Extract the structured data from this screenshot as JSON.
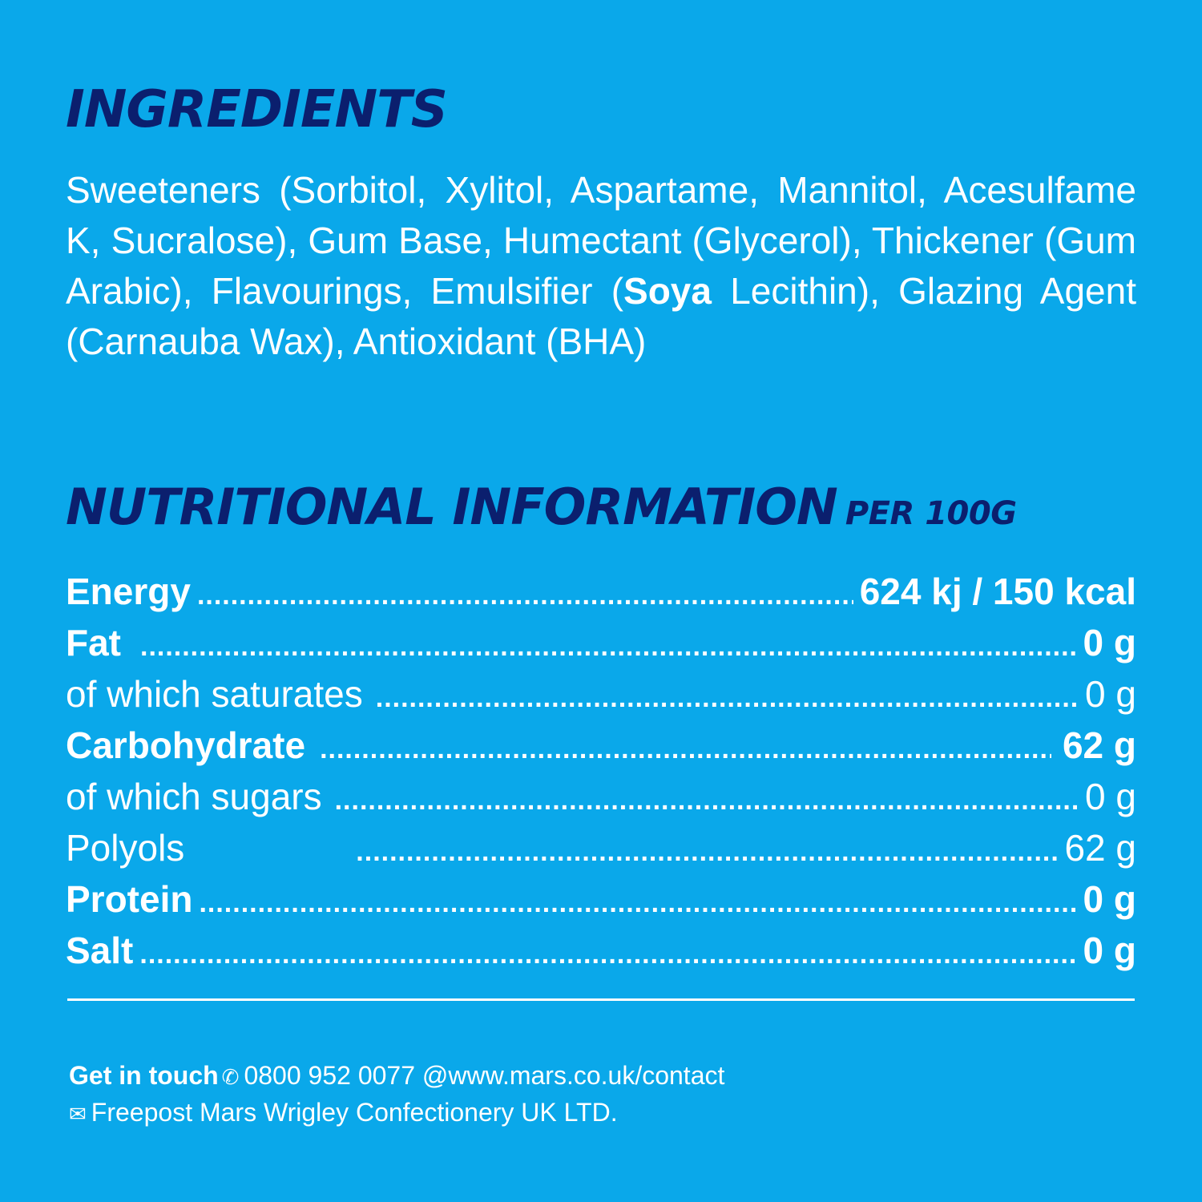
{
  "ingredients": {
    "heading": "INGREDIENTS",
    "text_before_bold": "Sweeteners (Sorbitol, Xylitol, Aspartame, Mannitol, Acesulfame K, Sucralose), Gum Base, Humectant (Glycerol), Thickener (Gum Arabic), Flavourings, Emulsifier (",
    "text_bold": "Soya",
    "text_after_bold": " Lecithin), Glazing Agent (Carnauba Wax), Antioxidant (BHA)"
  },
  "nutrition": {
    "heading": "NUTRITIONAL INFORMATION",
    "per": "PER 100G",
    "rows": [
      {
        "label": "Energy",
        "value": "624 kj / 150 kcal",
        "bold": true
      },
      {
        "label": "Fat",
        "value": "0 g",
        "bold": true
      },
      {
        "label": "of which saturates",
        "value": "0 g",
        "bold": false
      },
      {
        "label": "Carbohydrate",
        "value": "62 g",
        "bold": true
      },
      {
        "label": "of which sugars",
        "value": "0 g",
        "bold": false
      },
      {
        "label": "Polyols",
        "value": "62 g",
        "bold": false
      },
      {
        "label": "Protein",
        "value": "0 g",
        "bold": true
      },
      {
        "label": "Salt",
        "value": "0 g",
        "bold": true
      }
    ]
  },
  "contact": {
    "label": "Get in touch",
    "phone_icon": "phone-icon",
    "phone": "0800 952 0077",
    "web": "@www.mars.co.uk/contact",
    "mail_icon": "envelope-icon",
    "address": "Freepost Mars Wrigley Confectionery UK LTD."
  },
  "colors": {
    "background": "#0aa8ea",
    "heading": "#0b1f6e",
    "text": "#ffffff"
  }
}
